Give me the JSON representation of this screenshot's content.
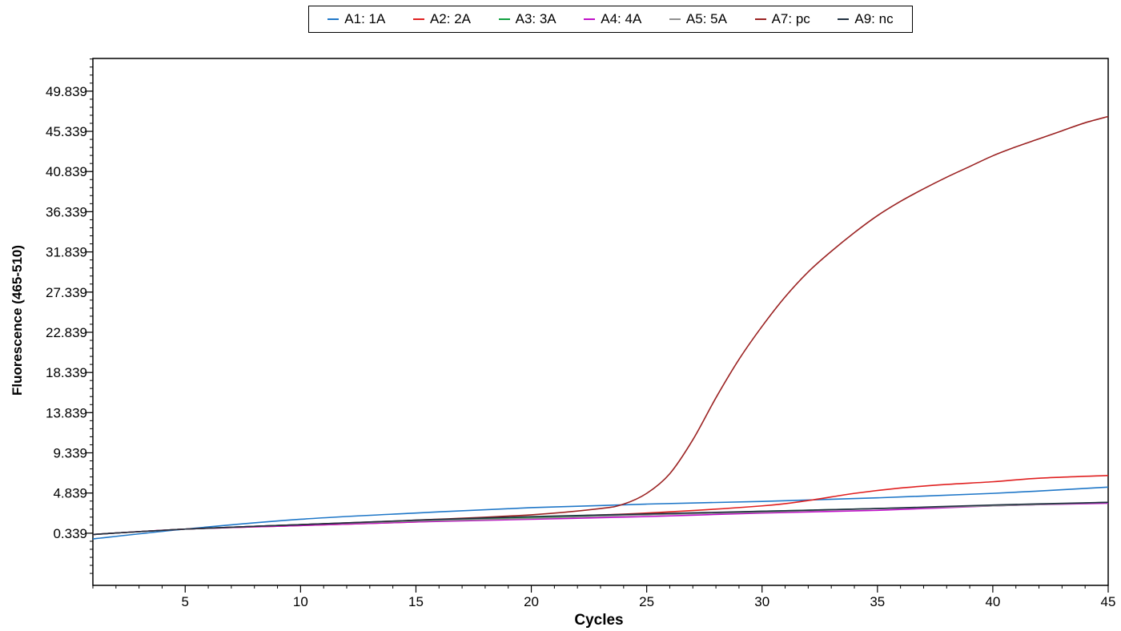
{
  "chart_data": {
    "type": "line",
    "title": "",
    "xlabel": "Cycles",
    "ylabel": "Fluorescence (465-510)",
    "xlim": [
      1,
      45
    ],
    "ylim": [
      -5.5,
      53.5
    ],
    "x_ticks": [
      "5",
      "10",
      "15",
      "20",
      "25",
      "30",
      "35",
      "40",
      "45"
    ],
    "y_ticks": [
      "0.339",
      "4.839",
      "9.339",
      "13.839",
      "18.339",
      "22.839",
      "27.339",
      "31.839",
      "36.339",
      "40.839",
      "45.339",
      "49.839"
    ],
    "grid": false,
    "legend_position": "top-center",
    "series": [
      {
        "name": "A1: 1A",
        "color": "#1f77c8",
        "x": [
          1,
          5,
          10,
          15,
          20,
          25,
          30,
          35,
          40,
          45
        ],
        "y": [
          -0.3,
          0.8,
          1.9,
          2.6,
          3.2,
          3.6,
          3.9,
          4.3,
          4.8,
          5.5
        ]
      },
      {
        "name": "A2: 2A",
        "color": "#e02020",
        "x": [
          1,
          5,
          10,
          15,
          20,
          25,
          30,
          32,
          34,
          36,
          38,
          40,
          42,
          45
        ],
        "y": [
          0.2,
          0.8,
          1.2,
          1.6,
          2.1,
          2.6,
          3.4,
          4.0,
          4.8,
          5.4,
          5.8,
          6.1,
          6.5,
          6.8
        ]
      },
      {
        "name": "A3: 3A",
        "color": "#10a040",
        "x": [
          1,
          5,
          10,
          15,
          20,
          25,
          30,
          35,
          40,
          45
        ],
        "y": [
          0.2,
          0.8,
          1.3,
          1.7,
          2.1,
          2.4,
          2.8,
          3.1,
          3.4,
          3.8
        ]
      },
      {
        "name": "A4: 4A",
        "color": "#c010c8",
        "x": [
          1,
          5,
          10,
          15,
          20,
          25,
          30,
          35,
          40,
          45
        ],
        "y": [
          0.2,
          0.8,
          1.2,
          1.6,
          1.9,
          2.2,
          2.6,
          2.9,
          3.4,
          3.7
        ]
      },
      {
        "name": "A5: 5A",
        "color": "#909090",
        "x": [
          1,
          5,
          10,
          15,
          20,
          25,
          30,
          35,
          40,
          45
        ],
        "y": [
          0.2,
          0.8,
          1.3,
          1.7,
          2.0,
          2.4,
          2.7,
          3.1,
          3.4,
          3.8
        ]
      },
      {
        "name": "A7: pc",
        "color": "#9b2222",
        "x": [
          1,
          5,
          10,
          15,
          20,
          23,
          24,
          25,
          26,
          27,
          28,
          29,
          30,
          31,
          32,
          33,
          34,
          35,
          36,
          37,
          38,
          39,
          40,
          41,
          42,
          43,
          44,
          45
        ],
        "y": [
          0.2,
          0.8,
          1.3,
          1.8,
          2.4,
          3.1,
          3.6,
          4.8,
          7.0,
          10.8,
          15.5,
          19.8,
          23.5,
          26.8,
          29.6,
          31.9,
          34.0,
          35.9,
          37.5,
          38.9,
          40.2,
          41.4,
          42.6,
          43.6,
          44.5,
          45.4,
          46.3,
          47.0
        ]
      },
      {
        "name": "A9: nc",
        "color": "#203040",
        "x": [
          1,
          5,
          10,
          15,
          20,
          25,
          30,
          35,
          40,
          45
        ],
        "y": [
          0.2,
          0.8,
          1.3,
          1.8,
          2.2,
          2.5,
          2.8,
          3.1,
          3.5,
          3.8
        ]
      }
    ]
  }
}
